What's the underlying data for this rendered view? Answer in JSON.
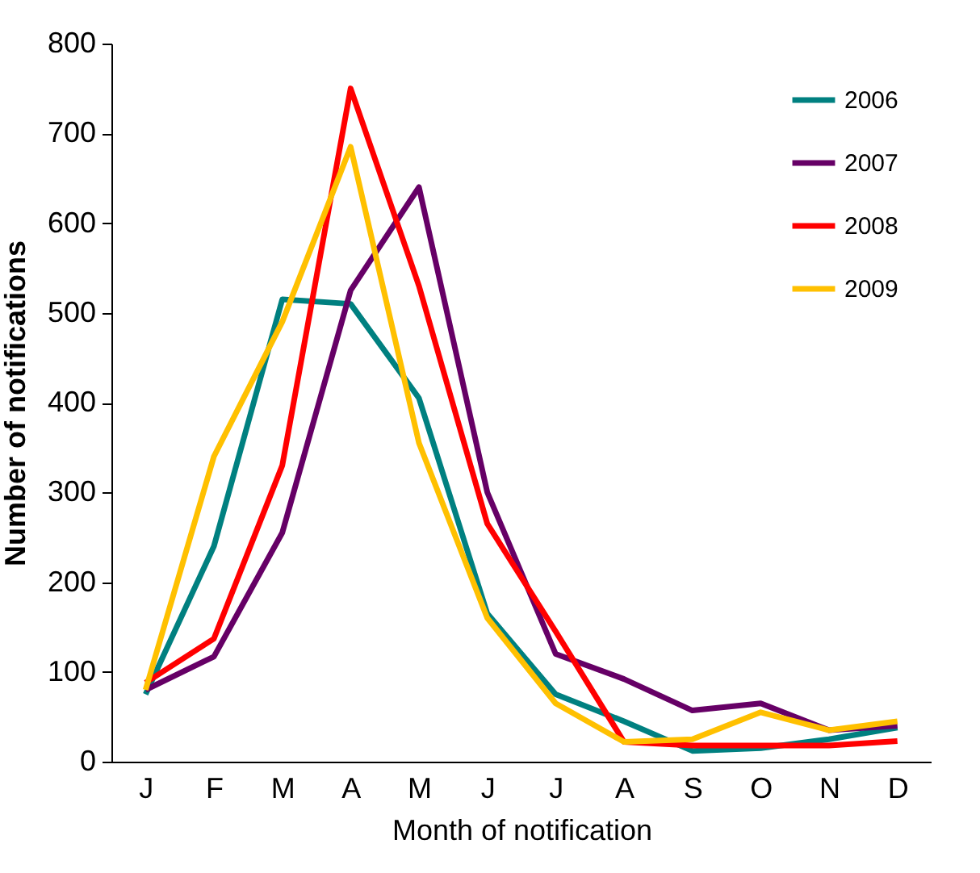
{
  "chart_data": {
    "type": "line",
    "xlabel": "Month of notification",
    "ylabel": "Number of notifications",
    "categories": [
      "J",
      "F",
      "M",
      "A",
      "M",
      "J",
      "J",
      "A",
      "S",
      "O",
      "N",
      "D"
    ],
    "series": [
      {
        "name": "2006",
        "color": "#008080",
        "values": [
          75,
          240,
          515,
          510,
          405,
          165,
          75,
          45,
          12,
          15,
          25,
          38
        ]
      },
      {
        "name": "2007",
        "color": "#660066",
        "values": [
          80,
          117,
          255,
          525,
          640,
          300,
          120,
          92,
          57,
          65,
          35,
          40
        ]
      },
      {
        "name": "2008",
        "color": "#ff0000",
        "values": [
          88,
          137,
          330,
          750,
          530,
          265,
          145,
          22,
          18,
          18,
          18,
          23
        ]
      },
      {
        "name": "2009",
        "color": "#ffc000",
        "values": [
          80,
          340,
          490,
          685,
          355,
          160,
          65,
          22,
          25,
          55,
          35,
          45
        ]
      }
    ],
    "ylim": [
      0,
      800
    ],
    "yticks": [
      0,
      100,
      200,
      300,
      400,
      500,
      600,
      700,
      800
    ],
    "grid": false,
    "legend": "top right",
    "marker": "none",
    "line_style": "solid"
  }
}
